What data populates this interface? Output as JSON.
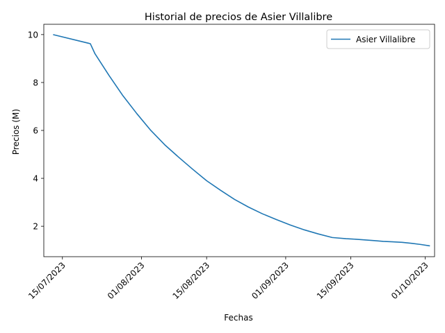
{
  "chart_data": {
    "type": "line",
    "title": "Historial de precios de Asier Villalibre",
    "xlabel": "Fechas",
    "ylabel": "Precios (M)",
    "ylim": [
      0.73,
      10.43
    ],
    "xlim": [
      "2023-07-11",
      "2023-10-03"
    ],
    "yticks": [
      2,
      4,
      6,
      8,
      10
    ],
    "xticks": [
      "2023-07-15",
      "2023-08-01",
      "2023-08-15",
      "2023-09-01",
      "2023-09-15",
      "2023-10-01"
    ],
    "xtick_labels": [
      "15/07/2023",
      "01/08/2023",
      "15/08/2023",
      "01/09/2023",
      "15/09/2023",
      "01/10/2023"
    ],
    "grid": false,
    "legend_position": "upper right",
    "series": [
      {
        "name": "Asier Villalibre",
        "color": "#1f77b4",
        "x": [
          "2023-07-13",
          "2023-07-21",
          "2023-07-22",
          "2023-07-25",
          "2023-07-28",
          "2023-07-31",
          "2023-08-03",
          "2023-08-06",
          "2023-08-09",
          "2023-08-12",
          "2023-08-15",
          "2023-08-18",
          "2023-08-21",
          "2023-08-24",
          "2023-08-27",
          "2023-08-30",
          "2023-09-02",
          "2023-09-05",
          "2023-09-08",
          "2023-09-11",
          "2023-09-14",
          "2023-09-16",
          "2023-09-18",
          "2023-09-20",
          "2023-09-22",
          "2023-09-24",
          "2023-09-26",
          "2023-09-28",
          "2023-09-30",
          "2023-10-02"
        ],
        "values": [
          10.0,
          9.62,
          9.2,
          8.3,
          7.45,
          6.7,
          6.0,
          5.4,
          4.88,
          4.38,
          3.9,
          3.5,
          3.12,
          2.8,
          2.52,
          2.28,
          2.05,
          1.85,
          1.68,
          1.53,
          1.48,
          1.46,
          1.43,
          1.4,
          1.37,
          1.35,
          1.33,
          1.29,
          1.24,
          1.18
        ]
      }
    ]
  }
}
